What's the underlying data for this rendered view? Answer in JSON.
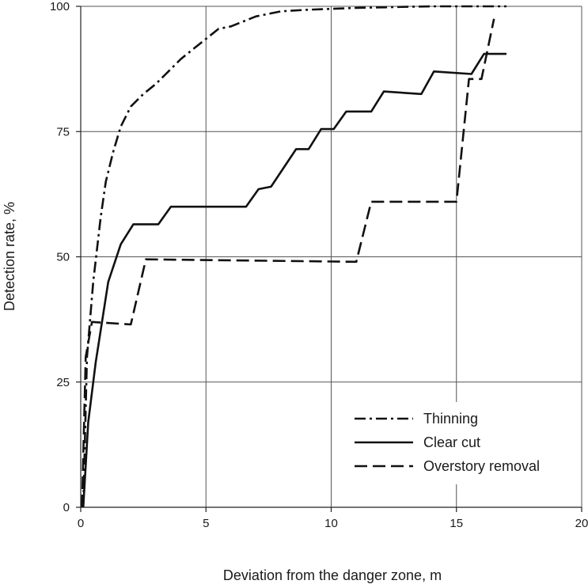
{
  "chart_data": {
    "type": "line",
    "xlabel": "Deviation from the danger zone, m",
    "ylabel": "Detection rate, %",
    "xlim": [
      0,
      20
    ],
    "ylim": [
      0,
      100
    ],
    "x_ticks": [
      "0",
      "5",
      "10",
      "15",
      "20"
    ],
    "y_ticks": [
      "0",
      "25",
      "50",
      "75",
      "100"
    ],
    "grid": true,
    "legend_position": "bottom-right",
    "series": [
      {
        "name": "Thinning",
        "dash": "dash-dot",
        "x": [
          0.1,
          0.25,
          0.5,
          0.8,
          1.0,
          1.3,
          1.6,
          2.0,
          2.5,
          3.0,
          3.5,
          4.0,
          4.5,
          5.0,
          5.5,
          6.0,
          6.5,
          7.0,
          7.5,
          8.0,
          9.0,
          10.0,
          11.0,
          12.0,
          13.0,
          14.0,
          15.0,
          16.0,
          17.0
        ],
        "y": [
          0,
          30,
          45,
          58,
          65,
          71,
          76,
          80,
          82.5,
          84.5,
          87,
          89.5,
          91.5,
          93.5,
          95.5,
          96,
          97,
          98,
          98.5,
          99,
          99.3,
          99.5,
          99.7,
          99.8,
          99.9,
          100,
          100,
          100,
          100
        ]
      },
      {
        "name": "Clear cut",
        "dash": "solid",
        "x": [
          0.1,
          0.3,
          0.6,
          1.1,
          1.6,
          2.1,
          3.1,
          3.6,
          6.6,
          7.1,
          7.6,
          8.6,
          9.1,
          9.6,
          10.1,
          10.6,
          11.6,
          12.1,
          13.6,
          14.1,
          15.6,
          16.1,
          17.0
        ],
        "y": [
          0,
          17,
          29,
          45,
          52.5,
          56.5,
          56.5,
          60,
          60,
          63.5,
          64,
          71.5,
          71.5,
          75.5,
          75.5,
          79,
          79,
          83,
          82.5,
          87,
          86.5,
          90.5,
          90.5
        ]
      },
      {
        "name": "Overstory removal",
        "dash": "dashed",
        "x": [
          0.05,
          0.2,
          0.45,
          2.0,
          2.6,
          11.0,
          11.6,
          15.0,
          15.5,
          16.0,
          16.5
        ],
        "y": [
          0,
          30,
          37,
          36.5,
          49.5,
          49,
          61,
          61,
          85.5,
          85.5,
          97.5
        ]
      }
    ]
  },
  "legend": {
    "items": [
      {
        "label": "Thinning",
        "dash": "dash-dot"
      },
      {
        "label": "Clear cut",
        "dash": "solid"
      },
      {
        "label": "Overstory removal",
        "dash": "dashed"
      }
    ]
  }
}
